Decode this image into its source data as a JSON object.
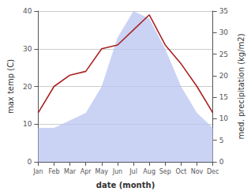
{
  "chart_data": {
    "type": "line",
    "xlabel": "date (month)",
    "ylabel": "max temp (C)",
    "y2label": "med. precipitation (kg/m2)",
    "categories": [
      "Jan",
      "Feb",
      "Mar",
      "Apr",
      "May",
      "Jun",
      "Jul",
      "Aug",
      "Sep",
      "Oct",
      "Nov",
      "Dec"
    ],
    "series": [
      {
        "type": "area",
        "color": "#b8c4f0",
        "values": [
          9,
          9,
          11,
          13,
          20,
          33,
          40,
          38,
          30,
          20,
          13,
          9
        ]
      },
      {
        "type": "line",
        "color": "#aa2222",
        "values": [
          13,
          20,
          23,
          24,
          30,
          31,
          35,
          39,
          31,
          26,
          20,
          13
        ]
      }
    ],
    "ylim": [
      0,
      40
    ],
    "yticks": [
      0,
      10,
      20,
      30,
      40
    ],
    "y2lim": [
      0,
      35
    ],
    "y2ticks": [
      0,
      5,
      10,
      15,
      20,
      25,
      30,
      35
    ],
    "grid": true
  }
}
